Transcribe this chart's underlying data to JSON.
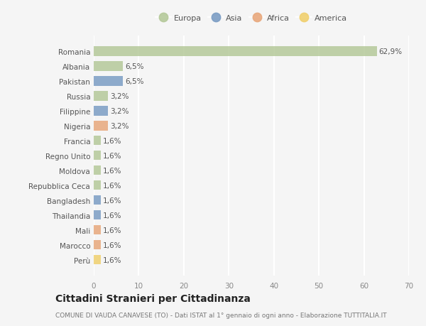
{
  "countries": [
    "Romania",
    "Albania",
    "Pakistan",
    "Russia",
    "Filippine",
    "Nigeria",
    "Francia",
    "Regno Unito",
    "Moldova",
    "Repubblica Ceca",
    "Bangladesh",
    "Thailandia",
    "Mali",
    "Marocco",
    "Perù"
  ],
  "values": [
    62.9,
    6.5,
    6.5,
    3.2,
    3.2,
    3.2,
    1.6,
    1.6,
    1.6,
    1.6,
    1.6,
    1.6,
    1.6,
    1.6,
    1.6
  ],
  "continents": [
    "Europa",
    "Europa",
    "Asia",
    "Europa",
    "Asia",
    "Africa",
    "Europa",
    "Europa",
    "Europa",
    "Europa",
    "Asia",
    "Asia",
    "Africa",
    "Africa",
    "America"
  ],
  "colors": {
    "Europa": "#b5c99a",
    "Asia": "#7b9dc4",
    "Africa": "#e8a87c",
    "America": "#f0d06e"
  },
  "xlim": [
    0,
    70
  ],
  "xticks": [
    0,
    10,
    20,
    30,
    40,
    50,
    60,
    70
  ],
  "title": "Cittadini Stranieri per Cittadinanza",
  "subtitle": "COMUNE DI VAUDA CANAVESE (TO) - Dati ISTAT al 1° gennaio di ogni anno - Elaborazione TUTTITALIA.IT",
  "bg_color": "#f5f5f5",
  "grid_color": "#ffffff",
  "bar_height": 0.65,
  "label_fontsize": 7.5,
  "ytick_fontsize": 7.5,
  "xtick_fontsize": 7.5,
  "title_fontsize": 10,
  "subtitle_fontsize": 6.5,
  "legend_fontsize": 8
}
